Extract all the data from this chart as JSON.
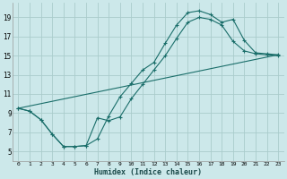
{
  "xlabel": "Humidex (Indice chaleur)",
  "bg_color": "#cce8ea",
  "grid_color": "#aacccc",
  "line_color": "#1a6e6a",
  "xlim": [
    -0.5,
    23.5
  ],
  "ylim": [
    4.0,
    20.5
  ],
  "xticks": [
    0,
    1,
    2,
    3,
    4,
    5,
    6,
    7,
    8,
    9,
    10,
    11,
    12,
    13,
    14,
    15,
    16,
    17,
    18,
    19,
    20,
    21,
    22,
    23
  ],
  "yticks": [
    5,
    7,
    9,
    11,
    13,
    15,
    17,
    19
  ],
  "curve1_x": [
    0,
    1,
    2,
    3,
    4,
    5,
    6,
    7,
    8,
    9,
    10,
    11,
    12,
    13,
    14,
    15,
    16,
    17,
    18,
    19,
    20,
    21,
    22,
    23
  ],
  "curve1_y": [
    9.5,
    9.2,
    8.3,
    6.8,
    5.5,
    5.5,
    5.6,
    6.3,
    8.7,
    10.7,
    12.1,
    13.5,
    14.3,
    16.3,
    18.2,
    19.5,
    19.7,
    19.3,
    18.5,
    18.8,
    16.6,
    15.3,
    15.2,
    15.1
  ],
  "curve2_x": [
    0,
    1,
    2,
    3,
    4,
    5,
    6,
    7,
    8,
    9,
    10,
    11,
    12,
    13,
    14,
    15,
    16,
    17,
    18,
    19,
    20,
    21,
    22,
    23
  ],
  "curve2_y": [
    9.5,
    9.2,
    8.3,
    6.8,
    5.5,
    5.5,
    5.6,
    8.5,
    8.2,
    8.6,
    10.5,
    12.0,
    13.5,
    15.0,
    16.8,
    18.5,
    19.0,
    18.8,
    18.2,
    16.5,
    15.5,
    15.2,
    15.1,
    15.0
  ],
  "line3_x": [
    0,
    23
  ],
  "line3_y": [
    9.5,
    15.1
  ]
}
